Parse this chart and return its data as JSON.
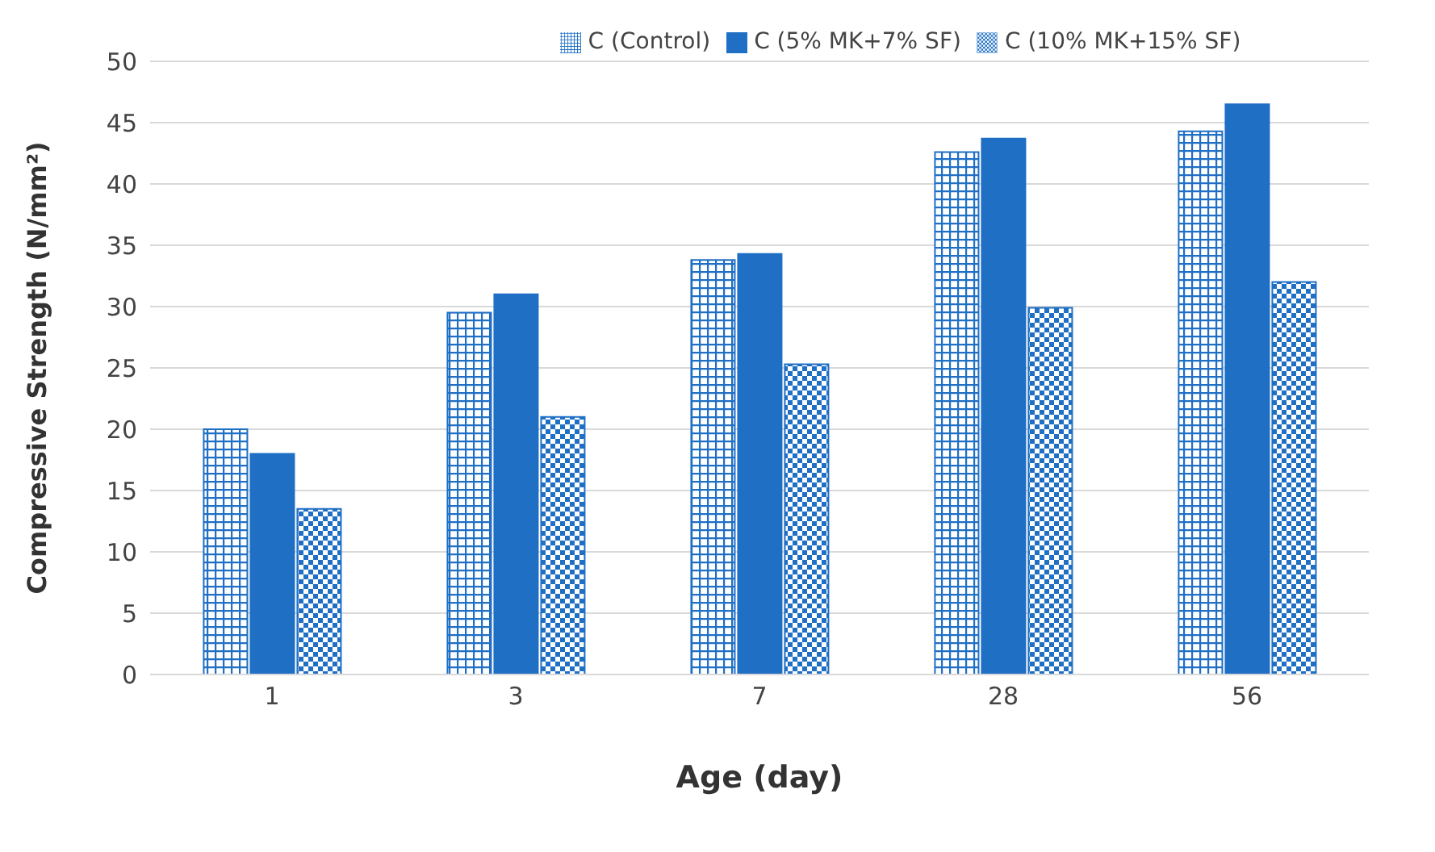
{
  "chart_data": {
    "type": "bar",
    "xlabel": "Age (day)",
    "ylabel": "Compressive Strength (N/mm²)",
    "categories": [
      "1",
      "3",
      "7",
      "28",
      "56"
    ],
    "series": [
      {
        "name": "C (Control)",
        "color": "#1f6fc5",
        "values": [
          20,
          29.5,
          33.8,
          42.6,
          44.3
        ]
      },
      {
        "name": "C (5% MK+7% SF)",
        "color": "#1f6fc5",
        "values": [
          18,
          31,
          34.3,
          43.7,
          46.5
        ]
      },
      {
        "name": "C (10% MK+15% SF)",
        "color": "#1f6fc5",
        "values": [
          13.5,
          21,
          25.3,
          29.9,
          32
        ]
      }
    ],
    "ylim": [
      0,
      50
    ],
    "yticks": [
      0,
      5,
      10,
      15,
      20,
      25,
      30,
      35,
      40,
      45,
      50
    ],
    "grid": "y",
    "legend": "top"
  }
}
